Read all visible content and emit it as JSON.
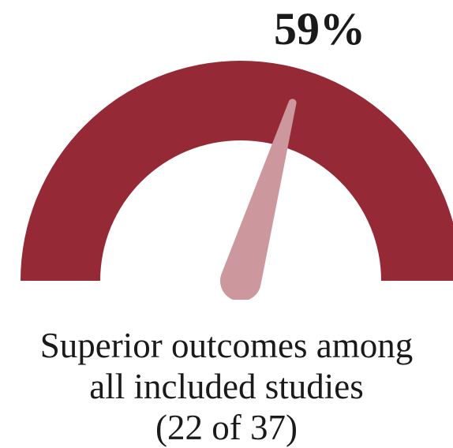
{
  "chart_data": {
    "type": "gauge",
    "value_label": "59%",
    "value": 0.59,
    "min": 0,
    "max": 1,
    "caption_lines": [
      "Superior outcomes among",
      "all included studies",
      "(22 of 37)"
    ],
    "numerator": 22,
    "denominator": 37
  },
  "colors": {
    "arc": "#952935",
    "needle": "#cc979d",
    "text": "#1a1a1a"
  }
}
